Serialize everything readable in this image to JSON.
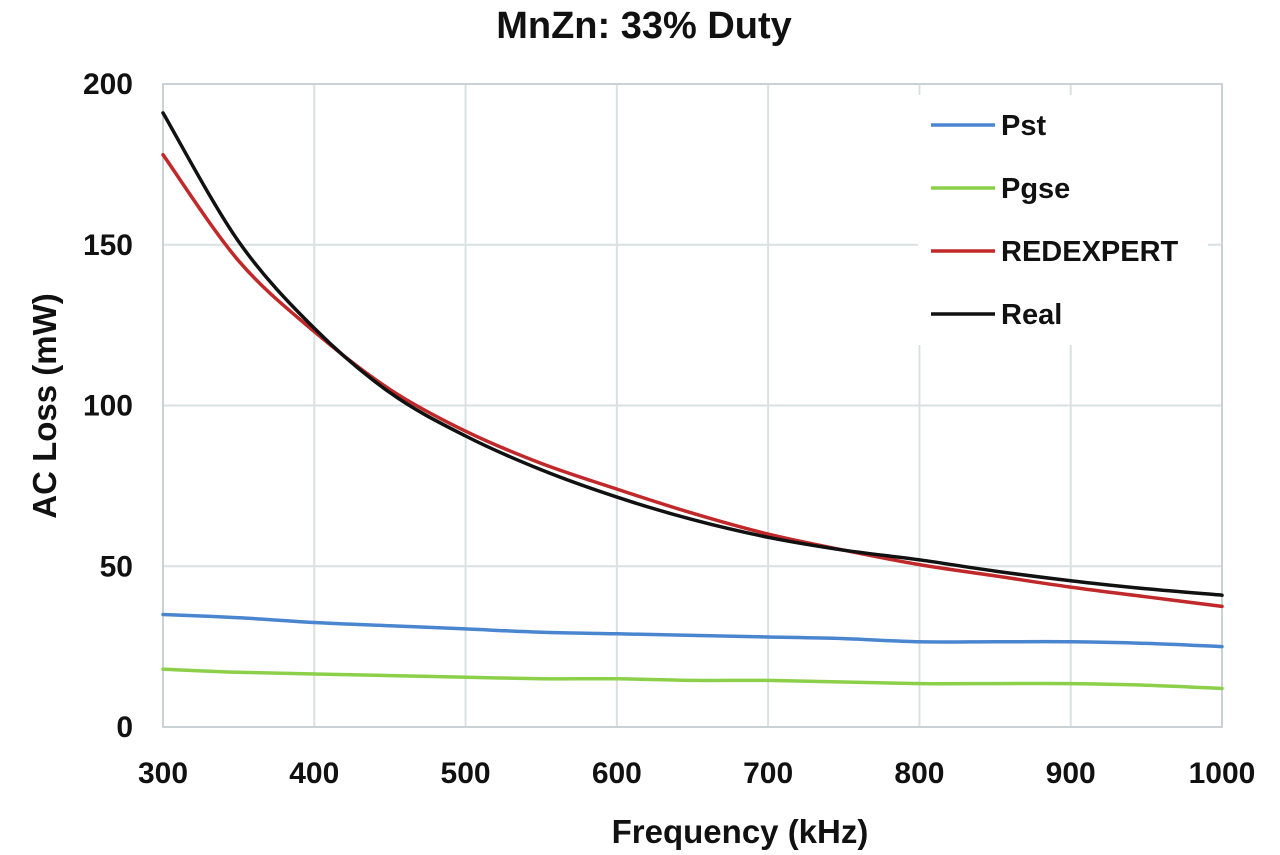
{
  "chart_data": {
    "type": "line",
    "title": "MnZn: 33% Duty",
    "xlabel": "Frequency (kHz)",
    "ylabel": "AC Loss (mW)",
    "xlim": [
      300,
      1000
    ],
    "ylim": [
      0,
      200
    ],
    "xticks": [
      300,
      400,
      500,
      600,
      700,
      800,
      900,
      1000
    ],
    "xtick_labels": [
      "300",
      "400",
      "500",
      "600",
      "700",
      "800",
      "900",
      "1000"
    ],
    "yticks": [
      0,
      50,
      100,
      150,
      200
    ],
    "ytick_labels": [
      "0",
      "50",
      "100",
      "150",
      "200"
    ],
    "grid": true,
    "legend_position": "top-right",
    "x": [
      300,
      350,
      400,
      450,
      500,
      550,
      600,
      650,
      700,
      750,
      800,
      850,
      900,
      950,
      1000
    ],
    "series": [
      {
        "name": "Pst",
        "color": "#4a86cf",
        "values": [
          35,
          34,
          32.5,
          31.5,
          30.5,
          29.5,
          29,
          28.5,
          28,
          27.5,
          26.5,
          26.5,
          26.5,
          26,
          25
        ]
      },
      {
        "name": "Pgse",
        "color": "#8cd04a",
        "values": [
          18,
          17,
          16.5,
          16,
          15.5,
          15,
          15,
          14.5,
          14.5,
          14,
          13.5,
          13.5,
          13.5,
          13,
          12
        ]
      },
      {
        "name": "REDEXPERT",
        "color": "#c0282a",
        "values": [
          178,
          145,
          123,
          105,
          92,
          82,
          74,
          66.5,
          60,
          55,
          50.5,
          47,
          43.5,
          40.5,
          37.5
        ]
      },
      {
        "name": "Real",
        "color": "#111111",
        "values": [
          191,
          151,
          124,
          104,
          90.5,
          80,
          71.5,
          64.5,
          59,
          55,
          52,
          48.5,
          45.5,
          43,
          41
        ]
      }
    ]
  }
}
